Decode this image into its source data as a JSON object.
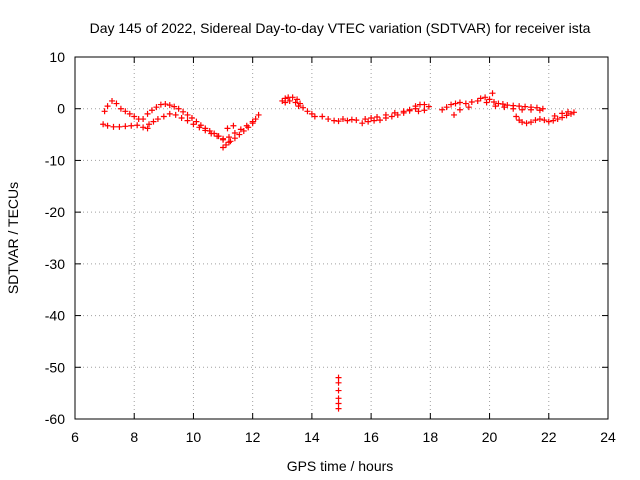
{
  "chart_data": {
    "type": "scatter",
    "title": "Day 145 of 2022, Sidereal Day-to-day VTEC variation (SDTVAR) for receiver ista",
    "xlabel": "GPS time / hours",
    "ylabel": "SDTVAR / TECUs",
    "xlim": [
      6,
      24
    ],
    "ylim": [
      -60,
      10
    ],
    "xticks": [
      "6",
      "8",
      "10",
      "12",
      "14",
      "16",
      "18",
      "20",
      "22",
      "24"
    ],
    "yticks": [
      "10",
      "0",
      "-10",
      "-20",
      "-30",
      "-40",
      "-50",
      "-60"
    ],
    "grid": true,
    "marker": "+",
    "marker_color": "#ff0000",
    "segments": [
      {
        "name": "arc-1-upper",
        "points": [
          [
            7.0,
            -0.5
          ],
          [
            7.1,
            0.5
          ],
          [
            7.25,
            1.5
          ],
          [
            7.4,
            1.0
          ],
          [
            7.55,
            0.0
          ],
          [
            7.7,
            -0.5
          ],
          [
            7.85,
            -1.0
          ],
          [
            8.0,
            -1.5
          ],
          [
            8.15,
            -2.0
          ],
          [
            8.3,
            -2.0
          ]
        ]
      },
      {
        "name": "arc-1-lower",
        "points": [
          [
            6.95,
            -3.0
          ],
          [
            7.1,
            -3.3
          ],
          [
            7.3,
            -3.5
          ],
          [
            7.5,
            -3.5
          ],
          [
            7.7,
            -3.4
          ],
          [
            7.9,
            -3.3
          ],
          [
            8.1,
            -3.2
          ],
          [
            8.3,
            -3.6
          ],
          [
            8.45,
            -3.8
          ]
        ]
      },
      {
        "name": "arc-2-upper",
        "points": [
          [
            8.45,
            -1.0
          ],
          [
            8.6,
            -0.3
          ],
          [
            8.75,
            0.3
          ],
          [
            8.9,
            0.8
          ],
          [
            9.05,
            0.9
          ],
          [
            9.2,
            0.7
          ],
          [
            9.35,
            0.4
          ],
          [
            9.5,
            0.0
          ],
          [
            9.65,
            -0.6
          ],
          [
            9.8,
            -1.2
          ],
          [
            9.95,
            -1.8
          ],
          [
            10.1,
            -2.5
          ],
          [
            10.25,
            -3.2
          ],
          [
            10.4,
            -3.8
          ],
          [
            10.55,
            -4.3
          ],
          [
            10.7,
            -4.8
          ],
          [
            10.85,
            -5.3
          ],
          [
            11.0,
            -5.8
          ]
        ]
      },
      {
        "name": "arc-2-lower",
        "points": [
          [
            8.5,
            -3.0
          ],
          [
            8.65,
            -2.5
          ],
          [
            8.8,
            -2.0
          ],
          [
            9.0,
            -1.5
          ],
          [
            9.2,
            -1.0
          ],
          [
            9.4,
            -1.2
          ],
          [
            9.6,
            -1.8
          ],
          [
            9.8,
            -2.3
          ],
          [
            10.0,
            -3.0
          ],
          [
            10.2,
            -3.6
          ],
          [
            10.4,
            -4.2
          ],
          [
            10.6,
            -4.8
          ],
          [
            10.8,
            -5.3
          ],
          [
            11.0,
            -6.0
          ],
          [
            11.2,
            -6.5
          ]
        ]
      },
      {
        "name": "arc-3",
        "points": [
          [
            11.0,
            -7.5
          ],
          [
            11.1,
            -7.0
          ],
          [
            11.25,
            -6.3
          ],
          [
            11.4,
            -5.7
          ],
          [
            11.55,
            -5.0
          ],
          [
            11.7,
            -4.3
          ],
          [
            11.85,
            -3.6
          ],
          [
            12.0,
            -2.8
          ],
          [
            12.1,
            -2.0
          ],
          [
            12.2,
            -1.2
          ],
          [
            11.2,
            -5.5
          ],
          [
            11.4,
            -4.7
          ],
          [
            11.6,
            -4.0
          ],
          [
            11.8,
            -3.3
          ],
          [
            12.0,
            -2.5
          ],
          [
            11.15,
            -3.8
          ],
          [
            11.35,
            -3.3
          ]
        ]
      },
      {
        "name": "arc-4",
        "points": [
          [
            13.0,
            1.5
          ],
          [
            13.1,
            2.0
          ],
          [
            13.2,
            2.2
          ],
          [
            13.35,
            2.2
          ],
          [
            13.5,
            1.8
          ],
          [
            13.6,
            1.0
          ],
          [
            13.7,
            0.2
          ],
          [
            13.85,
            -0.5
          ],
          [
            14.0,
            -1.0
          ],
          [
            13.1,
            1.2
          ],
          [
            13.25,
            1.5
          ],
          [
            13.45,
            1.2
          ],
          [
            13.55,
            0.5
          ]
        ]
      },
      {
        "name": "sparse-1",
        "points": [
          [
            14.1,
            -1.5
          ],
          [
            14.35,
            -1.5
          ],
          [
            14.55,
            -2.0
          ],
          [
            14.75,
            -2.3
          ],
          [
            14.9,
            -2.4
          ],
          [
            15.05,
            -2.0
          ],
          [
            15.2,
            -2.3
          ],
          [
            15.35,
            -2.1
          ],
          [
            15.5,
            -2.2
          ]
        ]
      },
      {
        "name": "outliers",
        "points": [
          [
            14.9,
            -52.0
          ],
          [
            14.9,
            -53.0
          ],
          [
            14.9,
            -54.5
          ],
          [
            14.9,
            -56.0
          ],
          [
            14.9,
            -57.0
          ],
          [
            14.9,
            -58.0
          ]
        ]
      },
      {
        "name": "arc-5",
        "points": [
          [
            15.7,
            -2.8
          ],
          [
            15.9,
            -2.5
          ],
          [
            16.1,
            -2.3
          ],
          [
            16.3,
            -2.2
          ],
          [
            16.5,
            -1.8
          ],
          [
            16.7,
            -1.5
          ],
          [
            16.9,
            -1.2
          ],
          [
            17.1,
            -0.8
          ],
          [
            17.3,
            -0.4
          ],
          [
            17.5,
            0.0
          ],
          [
            15.8,
            -2.0
          ],
          [
            16.0,
            -1.8
          ],
          [
            16.2,
            -1.6
          ],
          [
            16.5,
            -1.2
          ],
          [
            16.8,
            -0.8
          ],
          [
            17.1,
            -0.5
          ],
          [
            17.3,
            -0.2
          ]
        ]
      },
      {
        "name": "arc-6",
        "points": [
          [
            17.5,
            0.5
          ],
          [
            17.65,
            0.8
          ],
          [
            17.8,
            0.8
          ],
          [
            17.95,
            0.4
          ],
          [
            17.6,
            -0.5
          ],
          [
            17.8,
            -0.3
          ]
        ]
      },
      {
        "name": "arc-7",
        "points": [
          [
            18.4,
            -0.2
          ],
          [
            18.55,
            0.3
          ],
          [
            18.7,
            0.8
          ],
          [
            18.85,
            1.0
          ],
          [
            19.0,
            1.2
          ],
          [
            19.2,
            1.0
          ],
          [
            19.4,
            1.3
          ],
          [
            19.6,
            1.5
          ],
          [
            18.8,
            -1.2
          ],
          [
            19.0,
            -0.2
          ],
          [
            19.3,
            0.3
          ]
        ]
      },
      {
        "name": "arc-8",
        "points": [
          [
            19.7,
            2.0
          ],
          [
            19.85,
            2.2
          ],
          [
            20.0,
            1.8
          ],
          [
            20.15,
            1.3
          ],
          [
            20.3,
            1.0
          ],
          [
            20.45,
            0.9
          ],
          [
            20.6,
            0.7
          ],
          [
            20.8,
            0.6
          ],
          [
            21.0,
            0.5
          ],
          [
            21.2,
            0.4
          ],
          [
            21.4,
            0.3
          ],
          [
            21.6,
            0.2
          ],
          [
            21.8,
            0.0
          ],
          [
            20.1,
            3.0
          ],
          [
            19.9,
            1.2
          ],
          [
            20.2,
            0.5
          ],
          [
            20.5,
            0.3
          ],
          [
            20.8,
            0.0
          ],
          [
            21.1,
            -0.2
          ],
          [
            21.4,
            -0.2
          ],
          [
            21.7,
            -0.3
          ]
        ]
      },
      {
        "name": "arc-9",
        "points": [
          [
            20.9,
            -1.5
          ],
          [
            21.0,
            -2.2
          ],
          [
            21.1,
            -2.6
          ],
          [
            21.25,
            -2.8
          ],
          [
            21.4,
            -2.6
          ],
          [
            21.55,
            -2.2
          ],
          [
            21.7,
            -2.0
          ],
          [
            21.85,
            -2.2
          ],
          [
            22.0,
            -2.5
          ],
          [
            22.15,
            -2.3
          ],
          [
            22.3,
            -2.0
          ],
          [
            22.45,
            -1.7
          ],
          [
            22.6,
            -1.3
          ],
          [
            22.75,
            -1.0
          ],
          [
            22.85,
            -0.7
          ],
          [
            22.2,
            -1.4
          ],
          [
            22.45,
            -0.9
          ],
          [
            22.65,
            -0.6
          ]
        ]
      }
    ]
  }
}
